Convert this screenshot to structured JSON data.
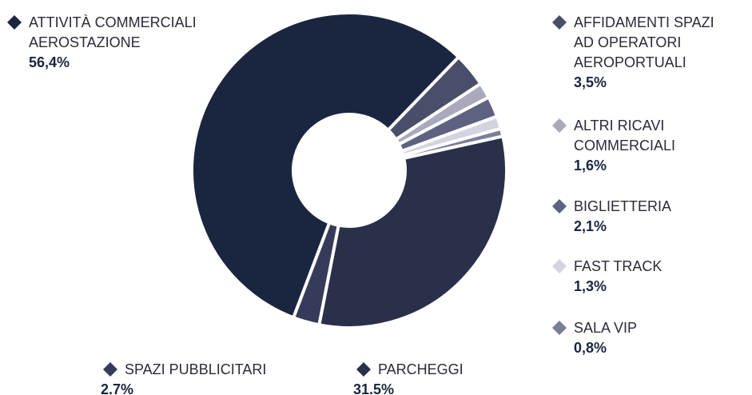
{
  "chart_data": {
    "type": "donut",
    "series": [
      {
        "name": "AFFIDAMENTI SPAZI\nAD OPERATORI\nAEROPORTUALI",
        "color": "#4a4e6a",
        "value": 3.5,
        "value_label": "3,5%"
      },
      {
        "name": "ALTRI RICAVI\nCOMMERCIALI",
        "color": "#a9a9bc",
        "value": 1.6,
        "value_label": "1,6%"
      },
      {
        "name": "BIGLIETTERIA",
        "color": "#5f6180",
        "value": 2.1,
        "value_label": "2,1%"
      },
      {
        "name": "FAST TRACK",
        "color": "#d4d4e0",
        "value": 1.3,
        "value_label": "1,3%"
      },
      {
        "name": "SALA VIP",
        "color": "#7c7e98",
        "value": 0.8,
        "value_label": "0,8%"
      },
      {
        "name": "PARCHEGGI",
        "color": "#2a304a",
        "value": 31.5,
        "value_label": "31.5%"
      },
      {
        "name": "SPAZI PUBBLICITARI",
        "color": "#363b59",
        "value": 2.7,
        "value_label": "2.7%"
      },
      {
        "name": "ATTIVITÀ COMMERCIALI\nAEROSTAZIONE",
        "color": "#1a2640",
        "value": 56.4,
        "value_label": "56,4%"
      }
    ]
  }
}
